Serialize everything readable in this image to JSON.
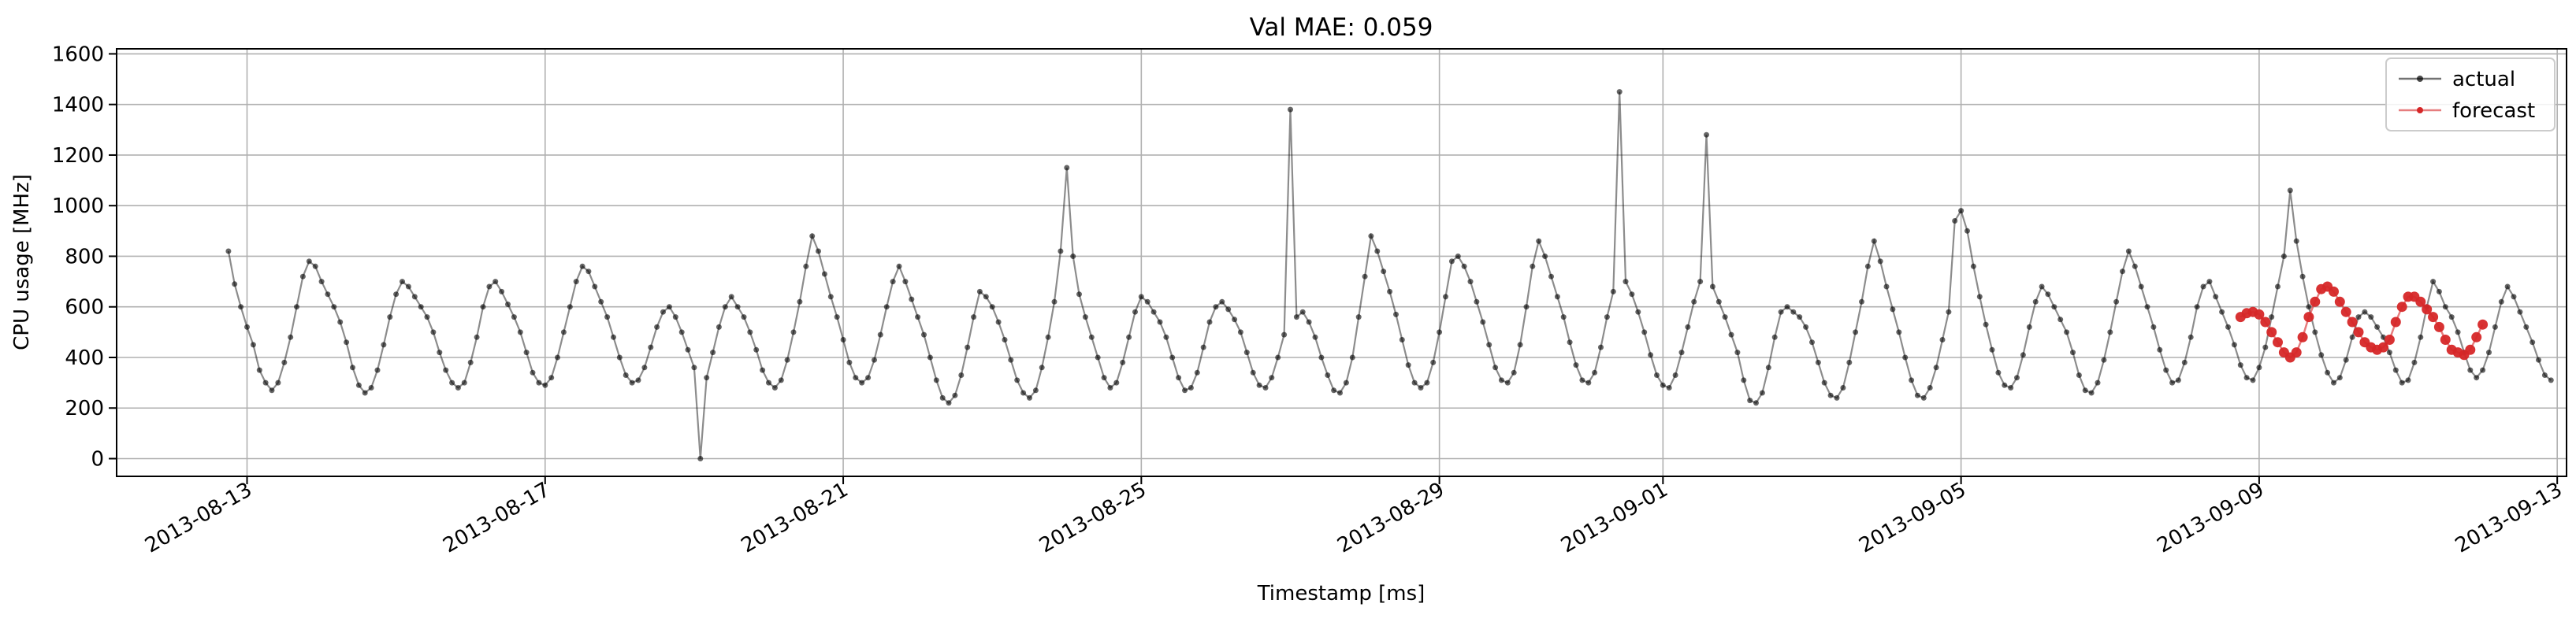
{
  "chart_data": {
    "type": "line",
    "title": "Val MAE: 0.059",
    "xlabel": "Timestamp [ms]",
    "ylabel": "CPU usage [MHz]",
    "xlim": [
      "2013-08-11T06:00:00",
      "2013-09-13T03:00:00"
    ],
    "ylim": [
      -70,
      1620
    ],
    "xticks": [
      "2013-08-13",
      "2013-08-17",
      "2013-08-21",
      "2013-08-25",
      "2013-08-29",
      "2013-09-01",
      "2013-09-05",
      "2013-09-09",
      "2013-09-13"
    ],
    "yticks": [
      "0",
      "200",
      "400",
      "600",
      "800",
      "1000",
      "1200",
      "1400",
      "1600"
    ],
    "grid": true,
    "legend_position": "top-right",
    "series": [
      {
        "name": "actual",
        "color": "#000000",
        "x_start": "2013-08-12T18:00:00",
        "step_hours": 2,
        "values": [
          820,
          690,
          600,
          520,
          450,
          350,
          300,
          270,
          300,
          380,
          480,
          600,
          720,
          780,
          760,
          700,
          650,
          600,
          540,
          460,
          360,
          290,
          260,
          280,
          350,
          450,
          560,
          650,
          700,
          680,
          640,
          600,
          560,
          500,
          420,
          350,
          300,
          280,
          300,
          380,
          480,
          600,
          680,
          700,
          660,
          610,
          560,
          500,
          420,
          340,
          300,
          290,
          320,
          400,
          500,
          600,
          700,
          760,
          740,
          680,
          620,
          560,
          480,
          400,
          330,
          300,
          310,
          360,
          440,
          520,
          580,
          600,
          560,
          500,
          430,
          360,
          0,
          320,
          420,
          520,
          600,
          640,
          600,
          560,
          500,
          430,
          350,
          300,
          280,
          310,
          390,
          500,
          620,
          760,
          880,
          820,
          730,
          640,
          560,
          470,
          380,
          320,
          300,
          320,
          390,
          490,
          600,
          700,
          760,
          700,
          630,
          560,
          490,
          400,
          310,
          240,
          220,
          250,
          330,
          440,
          560,
          660,
          640,
          600,
          540,
          470,
          390,
          310,
          260,
          240,
          270,
          360,
          480,
          620,
          820,
          1150,
          800,
          650,
          560,
          480,
          400,
          320,
          280,
          300,
          380,
          480,
          580,
          640,
          620,
          580,
          540,
          480,
          400,
          320,
          270,
          280,
          340,
          440,
          540,
          600,
          620,
          590,
          550,
          500,
          420,
          340,
          290,
          280,
          320,
          400,
          490,
          1380,
          560,
          580,
          540,
          480,
          400,
          330,
          270,
          260,
          300,
          400,
          560,
          720,
          880,
          820,
          740,
          660,
          570,
          470,
          370,
          300,
          280,
          300,
          380,
          500,
          640,
          780,
          800,
          760,
          700,
          620,
          540,
          450,
          360,
          310,
          300,
          340,
          450,
          600,
          760,
          860,
          800,
          720,
          640,
          560,
          460,
          370,
          310,
          300,
          340,
          440,
          560,
          660,
          1450,
          700,
          650,
          580,
          500,
          410,
          330,
          290,
          280,
          330,
          420,
          520,
          620,
          700,
          1280,
          680,
          620,
          560,
          490,
          420,
          310,
          230,
          220,
          260,
          360,
          480,
          580,
          600,
          580,
          560,
          520,
          460,
          380,
          300,
          250,
          240,
          280,
          380,
          500,
          620,
          760,
          860,
          780,
          680,
          590,
          500,
          400,
          310,
          250,
          240,
          280,
          360,
          470,
          580,
          940,
          980,
          900,
          760,
          640,
          530,
          430,
          340,
          290,
          280,
          320,
          410,
          520,
          620,
          680,
          650,
          600,
          550,
          500,
          420,
          330,
          270,
          260,
          300,
          390,
          500,
          620,
          740,
          820,
          760,
          680,
          600,
          520,
          430,
          350,
          300,
          310,
          380,
          480,
          600,
          680,
          700,
          640,
          580,
          520,
          450,
          370,
          320,
          310,
          360,
          440,
          560,
          680,
          800,
          1060,
          860,
          720,
          600,
          500,
          410,
          340,
          300,
          320,
          390,
          480,
          560,
          580,
          560,
          520,
          480,
          420,
          350,
          300,
          310,
          380,
          480,
          600,
          700,
          660,
          600,
          560,
          500,
          420,
          350,
          320,
          350,
          420,
          520,
          620,
          680,
          640,
          580,
          520,
          460,
          390,
          330,
          310
        ]
      },
      {
        "name": "forecast",
        "color": "#d62728",
        "x_start": "2013-09-08T18:00:00",
        "step_hours": 2,
        "values": [
          560,
          575,
          580,
          570,
          540,
          500,
          460,
          420,
          400,
          420,
          480,
          560,
          620,
          670,
          680,
          660,
          620,
          580,
          540,
          500,
          460,
          440,
          430,
          440,
          470,
          540,
          600,
          640,
          640,
          620,
          590,
          560,
          520,
          470,
          430,
          420,
          410,
          430,
          480,
          530
        ]
      }
    ]
  }
}
